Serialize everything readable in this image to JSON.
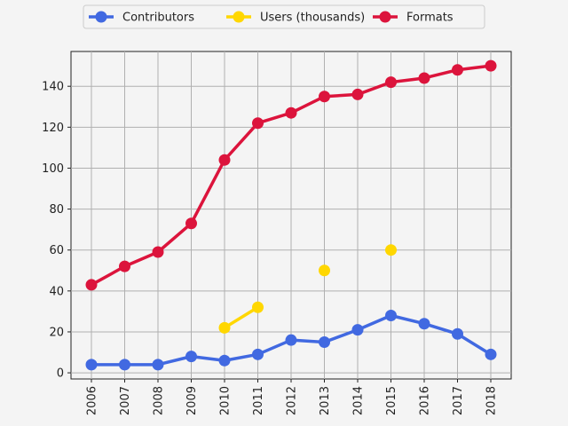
{
  "chart_data": {
    "type": "line",
    "title": "",
    "xlabel": "",
    "ylabel": "",
    "x": [
      "2006",
      "2007",
      "2008",
      "2009",
      "2010",
      "2011",
      "2012",
      "2013",
      "2014",
      "2015",
      "2016",
      "2017",
      "2018"
    ],
    "ylim": [
      -3,
      157
    ],
    "yticks": [
      0,
      20,
      40,
      60,
      80,
      100,
      120,
      140
    ],
    "grid": true,
    "legend_placement": "top-center, outside",
    "series": [
      {
        "name": "Contributors",
        "color": "#4169e1",
        "values": [
          4,
          4,
          4,
          8,
          6,
          9,
          16,
          15,
          21,
          28,
          24,
          19,
          9
        ]
      },
      {
        "name": "Users (thousands)",
        "color": "#ffd700",
        "values": [
          null,
          null,
          null,
          null,
          22,
          32,
          null,
          50,
          null,
          60,
          null,
          null,
          null
        ]
      },
      {
        "name": "Formats",
        "color": "#dc143c",
        "values": [
          43,
          52,
          59,
          73,
          104,
          122,
          127,
          135,
          136,
          142,
          144,
          148,
          150
        ]
      }
    ]
  }
}
